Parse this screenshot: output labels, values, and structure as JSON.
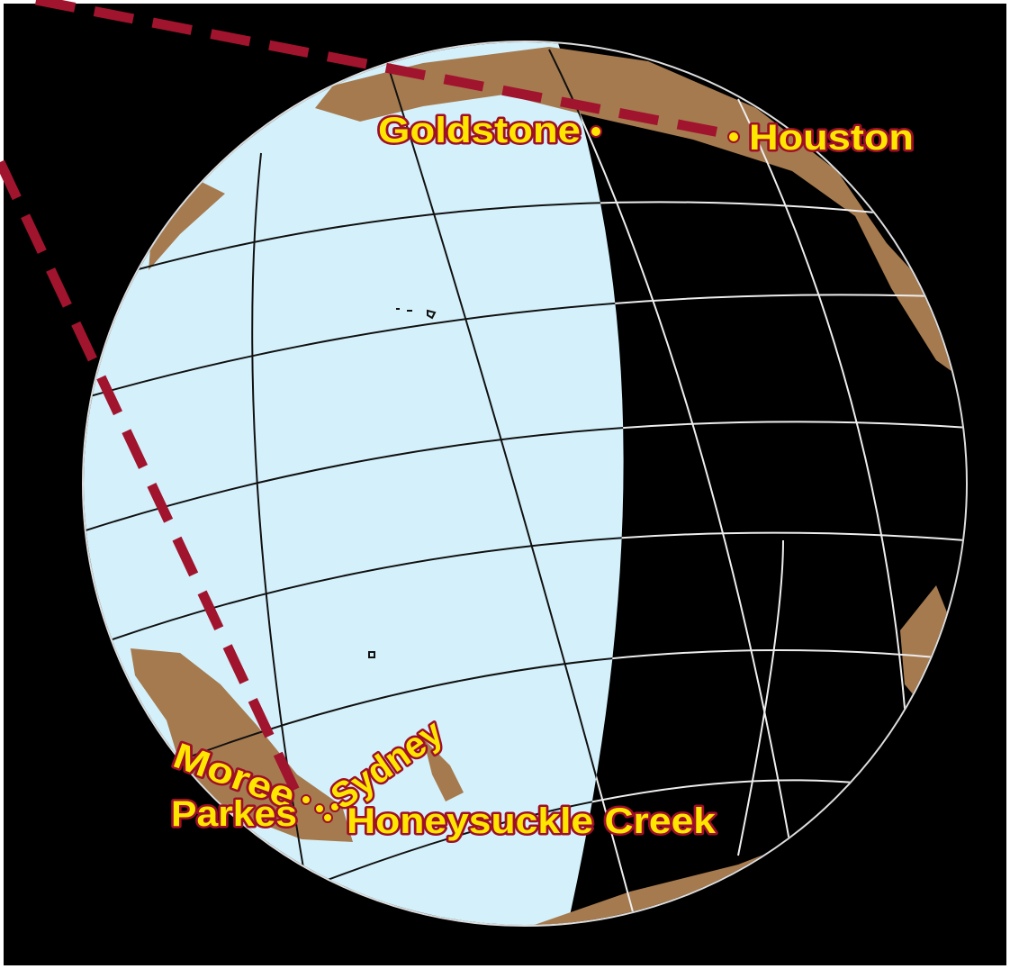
{
  "stations": [
    "Goldstone",
    "Houston",
    "Moree",
    "Sydney",
    "Parkes",
    "Honeysuckle Creek"
  ]
}
